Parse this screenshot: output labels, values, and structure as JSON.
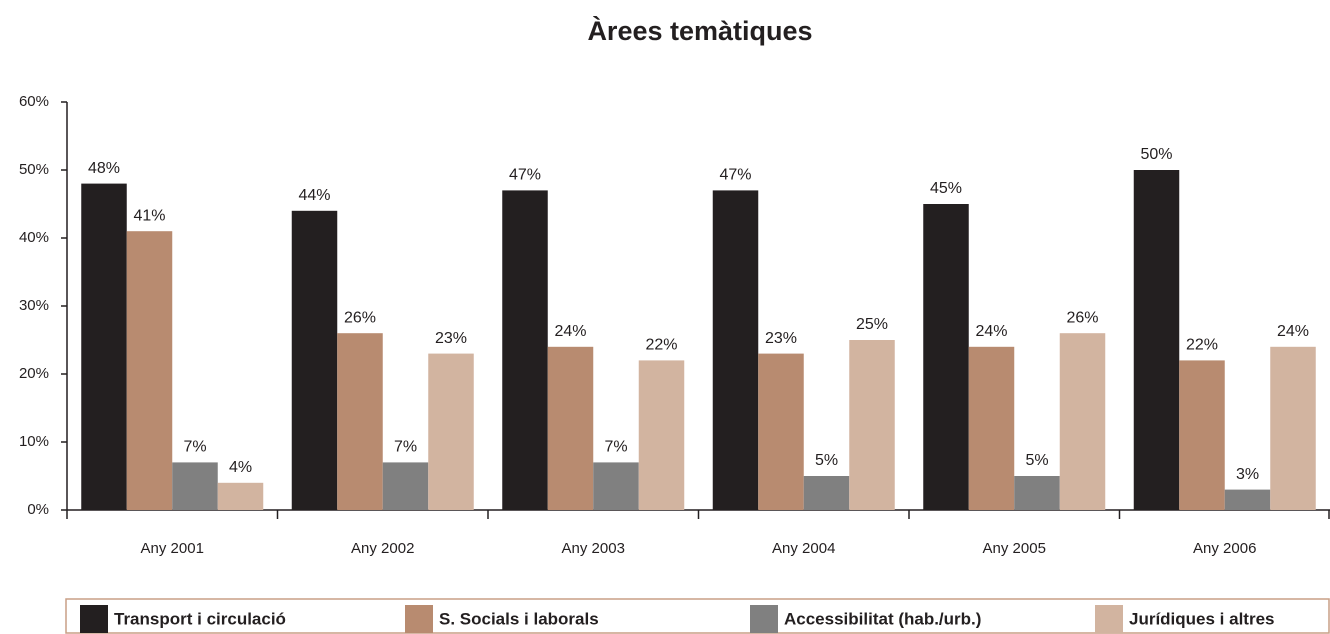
{
  "chart_data": {
    "type": "bar",
    "title": "Àrees temàtiques",
    "categories": [
      "Any 2001",
      "Any 2002",
      "Any 2003",
      "Any 2004",
      "Any 2005",
      "Any 2006"
    ],
    "series": [
      {
        "name": "Transport i circulació",
        "color": "#231f20",
        "values": [
          48,
          44,
          47,
          47,
          45,
          50
        ],
        "value_labels": [
          "48%",
          "44%",
          "47%",
          "47%",
          "45%",
          "50%"
        ]
      },
      {
        "name": "S. Socials i laborals",
        "color": "#b88b70",
        "values": [
          41,
          26,
          24,
          23,
          24,
          22
        ],
        "value_labels": [
          "41%",
          "26%",
          "24%",
          "23%",
          "24%",
          "22%"
        ]
      },
      {
        "name": "Accessibilitat (hab./urb.)",
        "color": "#808080",
        "values": [
          7,
          7,
          7,
          5,
          5,
          3
        ],
        "value_labels": [
          "7%",
          "7%",
          "7%",
          "5%",
          "5%",
          "3%"
        ]
      },
      {
        "name": "Jurídiques i altres",
        "color": "#d2b4a0",
        "values": [
          4,
          23,
          22,
          25,
          26,
          24
        ],
        "value_labels": [
          "4%",
          "23%",
          "22%",
          "25%",
          "26%",
          "24%"
        ]
      }
    ],
    "ylim": [
      0,
      60
    ],
    "yticks": [
      {
        "value": 0,
        "label": "0%"
      },
      {
        "value": 10,
        "label": "10%"
      },
      {
        "value": 20,
        "label": "20%"
      },
      {
        "value": 30,
        "label": "30%"
      },
      {
        "value": 40,
        "label": "40%"
      },
      {
        "value": 50,
        "label": "50%"
      },
      {
        "value": 60,
        "label": "60%"
      }
    ],
    "legend": "bottom"
  }
}
